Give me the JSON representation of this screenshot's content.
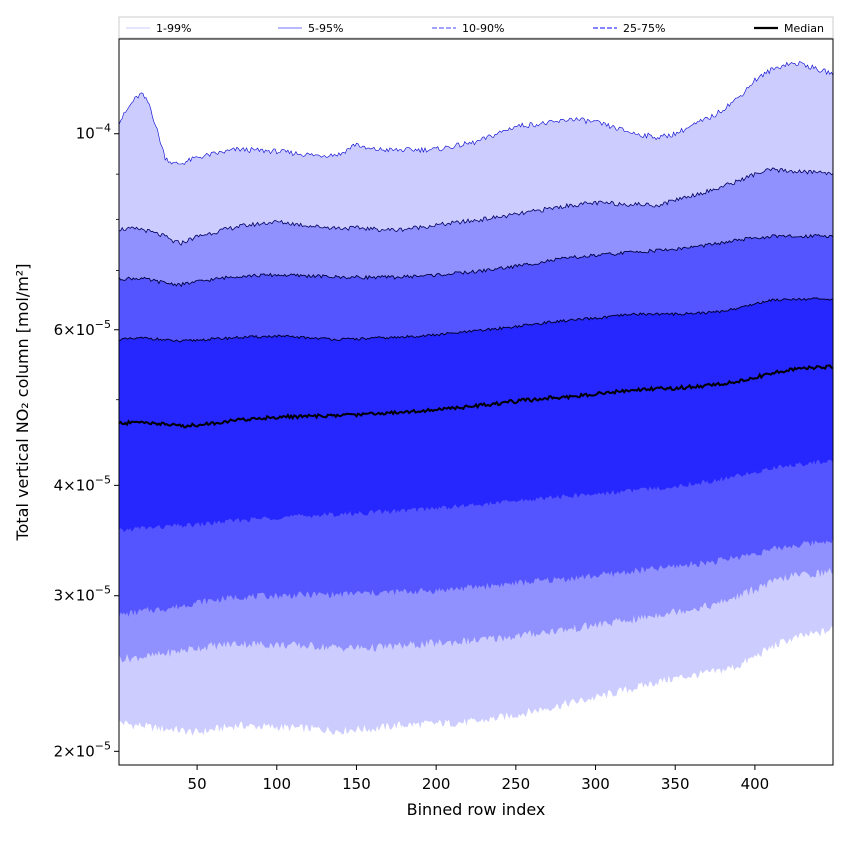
{
  "chart_data": {
    "type": "area",
    "xlabel": "Binned row index",
    "ylabel": "Total vertical NO₂ column [mol/m²]",
    "xlim": [
      1,
      449
    ],
    "ylim": [
      1.93e-05,
      0.000128
    ],
    "yscale": "log",
    "grid": false,
    "legend_position": "top",
    "x_ticks": [
      50,
      100,
      150,
      200,
      250,
      300,
      350,
      400
    ],
    "y_ticks": [
      {
        "value": 2e-05,
        "mantissa": "2",
        "exp": "−5"
      },
      {
        "value": 3e-05,
        "mantissa": "3",
        "exp": "−5"
      },
      {
        "value": 4e-05,
        "mantissa": "4",
        "exp": "−5"
      },
      {
        "value": 6e-05,
        "mantissa": "6",
        "exp": "−5"
      },
      {
        "value": 0.0001,
        "mantissa": "10",
        "exp": "−4"
      }
    ],
    "legend": [
      {
        "label": "1-99%",
        "color": "#d5d5ff",
        "style": "solid"
      },
      {
        "label": "5-95%",
        "color": "#8f8fff",
        "style": "solid"
      },
      {
        "label": "10-90%",
        "color": "#6b6bff",
        "style": "dashed"
      },
      {
        "label": "25-75%",
        "color": "#3a3aff",
        "style": "dashed"
      },
      {
        "label": "Median",
        "color": "#000000",
        "style": "solid"
      }
    ],
    "x": [
      1,
      10,
      15,
      20,
      30,
      35,
      40,
      50,
      75,
      100,
      125,
      140,
      150,
      155,
      160,
      175,
      200,
      225,
      250,
      275,
      285,
      300,
      325,
      340,
      350,
      375,
      390,
      400,
      410,
      420,
      430,
      440,
      449
    ],
    "band_colors": {
      "1-99": "#ccccff",
      "5-95": "#9090ff",
      "10-90": "#5555ff",
      "25-75": "#2626ff",
      "median": "#000000"
    },
    "series": [
      {
        "name": "1%",
        "values": [
          2.16e-05,
          2.14e-05,
          2.14e-05,
          2.13e-05,
          2.12e-05,
          2.12e-05,
          2.11e-05,
          2.1e-05,
          2.14e-05,
          2.13e-05,
          2.12e-05,
          2.11e-05,
          2.12e-05,
          2.12e-05,
          2.12e-05,
          2.14e-05,
          2.15e-05,
          2.16e-05,
          2.2e-05,
          2.25e-05,
          2.27e-05,
          2.3e-05,
          2.36e-05,
          2.4e-05,
          2.42e-05,
          2.46e-05,
          2.5e-05,
          2.56e-05,
          2.62e-05,
          2.67e-05,
          2.7e-05,
          2.72e-05,
          2.75e-05
        ]
      },
      {
        "name": "5%",
        "values": [
          2.55e-05,
          2.55e-05,
          2.56e-05,
          2.56e-05,
          2.58e-05,
          2.59e-05,
          2.6e-05,
          2.62e-05,
          2.65e-05,
          2.64e-05,
          2.63e-05,
          2.62e-05,
          2.62e-05,
          2.62e-05,
          2.62e-05,
          2.63e-05,
          2.65e-05,
          2.67e-05,
          2.7e-05,
          2.74e-05,
          2.75e-05,
          2.78e-05,
          2.82e-05,
          2.86e-05,
          2.88e-05,
          2.93e-05,
          3e-05,
          3.05e-05,
          3.1e-05,
          3.15e-05,
          3.17e-05,
          3.18e-05,
          3.2e-05
        ]
      },
      {
        "name": "10%",
        "values": [
          2.85e-05,
          2.87e-05,
          2.88e-05,
          2.89e-05,
          2.9e-05,
          2.91e-05,
          2.92e-05,
          2.95e-05,
          2.99e-05,
          3e-05,
          3.01e-05,
          3.01e-05,
          3.02e-05,
          3.02e-05,
          3.02e-05,
          3.03e-05,
          3.04e-05,
          3.07e-05,
          3.1e-05,
          3.13e-05,
          3.14e-05,
          3.16e-05,
          3.2e-05,
          3.22e-05,
          3.24e-05,
          3.28e-05,
          3.32e-05,
          3.35e-05,
          3.38e-05,
          3.41e-05,
          3.43e-05,
          3.45e-05,
          3.47e-05
        ]
      },
      {
        "name": "25%",
        "values": [
          3.55e-05,
          3.57e-05,
          3.58e-05,
          3.58e-05,
          3.59e-05,
          3.6e-05,
          3.6e-05,
          3.61e-05,
          3.65e-05,
          3.68e-05,
          3.7e-05,
          3.71e-05,
          3.72e-05,
          3.72e-05,
          3.73e-05,
          3.74e-05,
          3.77e-05,
          3.8e-05,
          3.84e-05,
          3.88e-05,
          3.89e-05,
          3.91e-05,
          3.95e-05,
          3.97e-05,
          3.99e-05,
          4.05e-05,
          4.1e-05,
          4.14e-05,
          4.18e-05,
          4.21e-05,
          4.23e-05,
          4.25e-05,
          4.26e-05
        ]
      },
      {
        "name": "Median",
        "values": [
          4.7e-05,
          4.71e-05,
          4.72e-05,
          4.71e-05,
          4.69e-05,
          4.68e-05,
          4.67e-05,
          4.68e-05,
          4.74e-05,
          4.78e-05,
          4.79e-05,
          4.8e-05,
          4.81e-05,
          4.82e-05,
          4.82e-05,
          4.84e-05,
          4.87e-05,
          4.92e-05,
          4.98e-05,
          5.03e-05,
          5.04e-05,
          5.08e-05,
          5.13e-05,
          5.15e-05,
          5.15e-05,
          5.2e-05,
          5.25e-05,
          5.3e-05,
          5.35e-05,
          5.4e-05,
          5.43e-05,
          5.44e-05,
          5.45e-05
        ]
      },
      {
        "name": "75%",
        "values": [
          5.85e-05,
          5.86e-05,
          5.87e-05,
          5.87e-05,
          5.84e-05,
          5.83e-05,
          5.82e-05,
          5.84e-05,
          5.88e-05,
          5.9e-05,
          5.87e-05,
          5.85e-05,
          5.86e-05,
          5.86e-05,
          5.87e-05,
          5.88e-05,
          5.92e-05,
          5.98e-05,
          6.05e-05,
          6.13e-05,
          6.15e-05,
          6.18e-05,
          6.25e-05,
          6.25e-05,
          6.25e-05,
          6.28e-05,
          6.35e-05,
          6.42e-05,
          6.48e-05,
          6.5e-05,
          6.5e-05,
          6.5e-05,
          6.48e-05
        ]
      },
      {
        "name": "90%",
        "values": [
          6.85e-05,
          6.86e-05,
          6.86e-05,
          6.83e-05,
          6.78e-05,
          6.76e-05,
          6.75e-05,
          6.8e-05,
          6.9e-05,
          6.92e-05,
          6.9e-05,
          6.88e-05,
          6.88e-05,
          6.88e-05,
          6.88e-05,
          6.88e-05,
          6.92e-05,
          6.98e-05,
          7.08e-05,
          7.2e-05,
          7.24e-05,
          7.28e-05,
          7.35e-05,
          7.38e-05,
          7.4e-05,
          7.5e-05,
          7.58e-05,
          7.62e-05,
          7.65e-05,
          7.65e-05,
          7.65e-05,
          7.68e-05,
          7.65e-05
        ]
      },
      {
        "name": "95%",
        "values": [
          7.8e-05,
          7.8e-05,
          7.8e-05,
          7.75e-05,
          7.65e-05,
          7.55e-05,
          7.52e-05,
          7.65e-05,
          7.85e-05,
          7.95e-05,
          7.85e-05,
          7.82e-05,
          7.82e-05,
          7.82e-05,
          7.8e-05,
          7.78e-05,
          7.88e-05,
          7.98e-05,
          8.1e-05,
          8.25e-05,
          8.3e-05,
          8.35e-05,
          8.32e-05,
          8.3e-05,
          8.42e-05,
          8.65e-05,
          8.85e-05,
          9e-05,
          9.1e-05,
          9.08e-05,
          9.05e-05,
          9.05e-05,
          9.02e-05
        ]
      },
      {
        "name": "99%",
        "values": [
          0.000103,
          0.000109,
          0.000111,
          0.000108,
          9.4e-05,
          9.25e-05,
          9.25e-05,
          9.4e-05,
          9.6e-05,
          9.55e-05,
          9.45e-05,
          9.48e-05,
          9.75e-05,
          9.62e-05,
          9.6e-05,
          9.58e-05,
          9.6e-05,
          9.78e-05,
          0.000102,
          0.000103,
          0.000104,
          0.000103,
          0.0001,
          9.9e-05,
          0.0001,
          0.000105,
          0.00011,
          0.000115,
          0.000118,
          0.00012,
          0.00012,
          0.000118,
          0.000117
        ]
      }
    ]
  }
}
